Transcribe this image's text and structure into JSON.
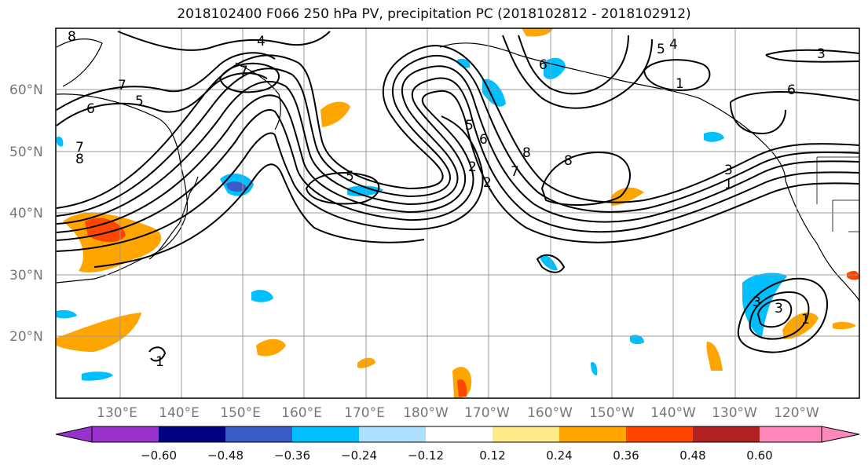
{
  "title": "2018102400 F066 250 hPa PV, precipitation PC (2018102812 - 2018102912)",
  "map": {
    "lat_labels": [
      "60°N",
      "50°N",
      "40°N",
      "30°N",
      "20°N"
    ],
    "lon_labels": [
      "130°E",
      "140°E",
      "150°E",
      "160°E",
      "170°E",
      "180°W",
      "170°W",
      "160°W",
      "150°W",
      "140°W",
      "130°W",
      "120°W"
    ],
    "contour_labels": [
      "8",
      "4",
      "7",
      "6",
      "5",
      "7",
      "8",
      "7",
      "5",
      "6",
      "5",
      "3",
      "6",
      "8",
      "7",
      "2",
      "8",
      "5",
      "4",
      "3",
      "1",
      "6",
      "3",
      "1",
      "3",
      "2",
      "1",
      "1"
    ]
  },
  "colorbar": {
    "tick_labels": [
      "−0.60",
      "−0.48",
      "−0.36",
      "−0.24",
      "−0.12",
      "0.12",
      "0.24",
      "0.36",
      "0.48",
      "0.60"
    ],
    "colors": [
      "#9932cc",
      "#000080",
      "#3a5bc8",
      "#00bfff",
      "#afe0ff",
      "#ffffff",
      "#ffeb8a",
      "#ffa500",
      "#ff4500",
      "#b22222",
      "#ff88bb"
    ]
  }
}
